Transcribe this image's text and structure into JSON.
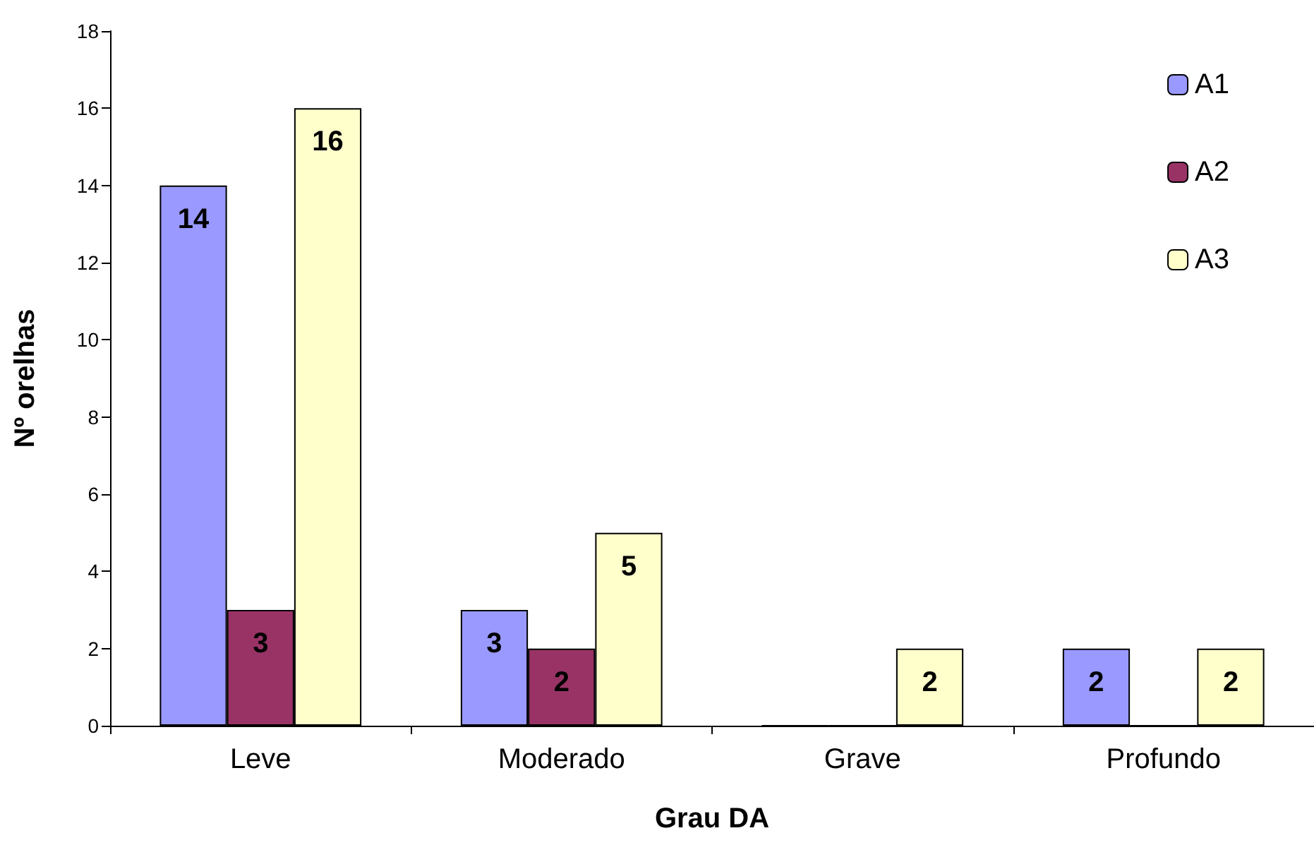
{
  "chart_data": {
    "type": "bar",
    "xlabel": "Grau DA",
    "ylabel": "Nº orelhas",
    "categories": [
      "Leve",
      "Moderado",
      "Grave",
      "Profundo"
    ],
    "series": [
      {
        "name": "A1",
        "color": "#9999ff",
        "values": [
          14,
          3,
          0,
          2
        ],
        "value_labels": [
          "14",
          "3",
          null,
          "2"
        ]
      },
      {
        "name": "A2",
        "color": "#993366",
        "values": [
          3,
          2,
          0,
          0
        ],
        "value_labels": [
          "3",
          "2",
          null,
          null
        ]
      },
      {
        "name": "A3",
        "color": "#ffffcc",
        "values": [
          16,
          5,
          2,
          2
        ],
        "value_labels": [
          "16",
          "5",
          "2",
          "2"
        ]
      }
    ],
    "ylim": [
      0,
      18
    ],
    "yticks": [
      0,
      2,
      4,
      6,
      8,
      10,
      12,
      14,
      16,
      18
    ],
    "grid": false,
    "legend": "top right"
  }
}
